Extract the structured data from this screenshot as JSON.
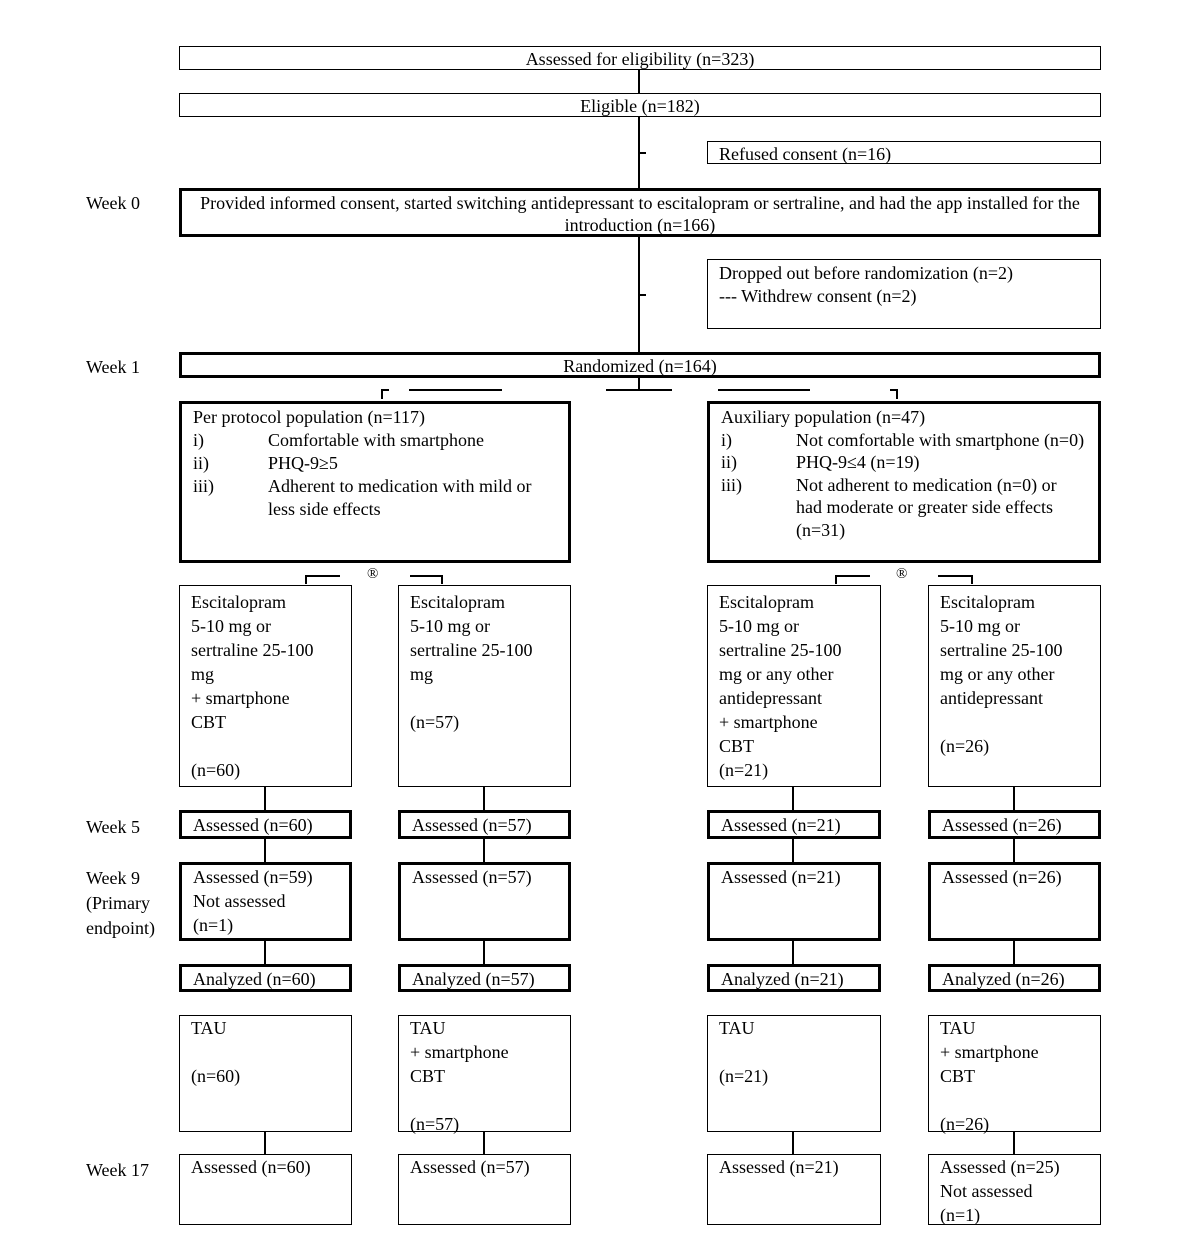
{
  "weeks": {
    "w0": "Week 0",
    "w1": "Week 1",
    "w5": "Week 5",
    "w9": "Week 9\n(Primary\nendpoint)",
    "w17": "Week 17"
  },
  "assessed": "Assessed for eligibility (n=323)",
  "eligible": "Eligible (n=182)",
  "refused": "Refused consent (n=16)",
  "consent": "Provided informed consent, started switching antidepressant to escitalopram or sertraline, and had the app installed for the introduction (n=166)",
  "dropped": "Dropped out before randomization (n=2)\n--- Withdrew consent (n=2)",
  "randomized": "Randomized (n=164)",
  "randomization_symbol": "®",
  "per_protocol": {
    "title": "Per protocol population (n=117)",
    "items": [
      {
        "k": "i)",
        "v": "Comfortable with smartphone"
      },
      {
        "k": "ii)",
        "v": "PHQ-9≥5"
      },
      {
        "k": "iii)",
        "v": "Adherent to medication with mild or less side effects"
      }
    ]
  },
  "auxiliary": {
    "title": "Auxiliary population (n=47)",
    "items": [
      {
        "k": "i)",
        "v": "Not comfortable with smartphone (n=0)"
      },
      {
        "k": "ii)",
        "v": "PHQ-9≤4 (n=19)"
      },
      {
        "k": "iii)",
        "v": "Not adherent to medication (n=0) or had moderate or greater side effects (n=31)"
      }
    ]
  },
  "arms": [
    {
      "treatment": "Escitalopram\n5-10 mg or\nsertraline 25-100\nmg\n+ smartphone\nCBT\n\n(n=60)",
      "week5": "Assessed (n=60)",
      "week9": "Assessed (n=59)\nNot assessed\n(n=1)",
      "analyzed": "Analyzed (n=60)",
      "second": "TAU\n\n(n=60)",
      "week17": "Assessed (n=60)"
    },
    {
      "treatment": "Escitalopram\n5-10 mg or\nsertraline 25-100\nmg\n\n(n=57)",
      "week5": "Assessed (n=57)",
      "week9": "Assessed (n=57)",
      "analyzed": "Analyzed (n=57)",
      "second": "TAU\n+ smartphone\nCBT\n\n(n=57)",
      "week17": "Assessed (n=57)"
    },
    {
      "treatment": "Escitalopram\n5-10 mg or\nsertraline 25-100\nmg or any other\nantidepressant\n+ smartphone\nCBT\n(n=21)",
      "week5": "Assessed (n=21)",
      "week9": "Assessed (n=21)",
      "analyzed": "Analyzed (n=21)",
      "second": "TAU\n\n(n=21)",
      "week17": "Assessed (n=21)"
    },
    {
      "treatment": "Escitalopram\n5-10 mg or\nsertraline 25-100\nmg or any other\nantidepressant\n\n(n=26)",
      "week5": "Assessed (n=26)",
      "week9": "Assessed (n=26)",
      "analyzed": "Analyzed (n=26)",
      "second": "TAU\n+ smartphone\nCBT\n\n(n=26)",
      "week17": "Assessed (n=25)\nNot assessed\n(n=1)"
    }
  ]
}
